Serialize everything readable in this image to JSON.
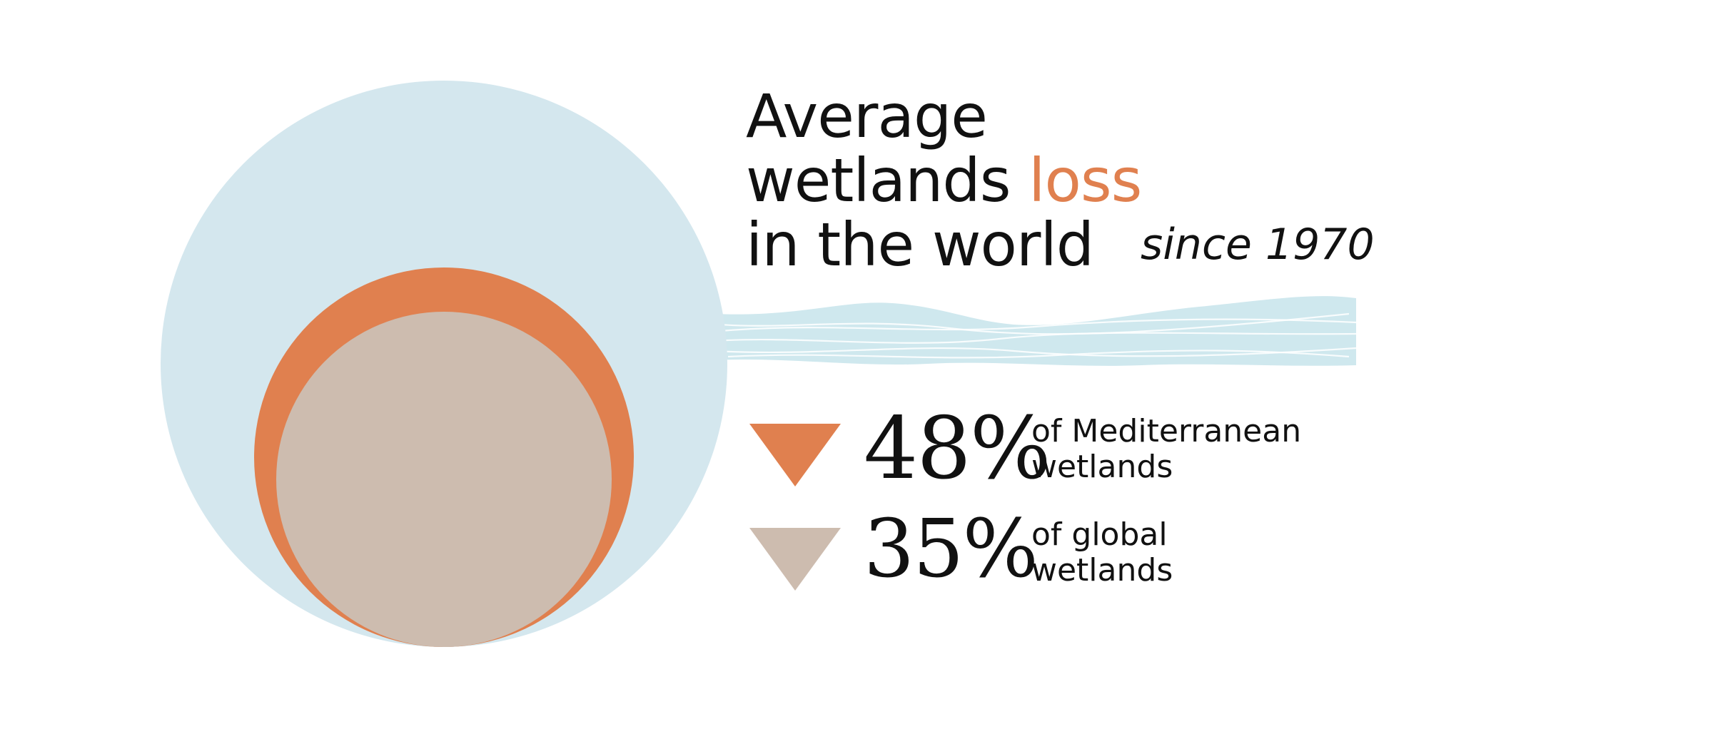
{
  "colors": {
    "world_circle": "#d4e7ee",
    "mediterranean": "#e0804f",
    "global": "#cdbcaf",
    "water": "#cfe8ee",
    "text": "#111111"
  },
  "title": {
    "line1": "Average",
    "line2_before": "wetlands ",
    "line2_accent": "loss",
    "line3": "in the world",
    "subtitle": "since 1970"
  },
  "stats": [
    {
      "value_text": "48%",
      "desc_line1": "of Mediterranean",
      "desc_line2": "wetlands",
      "icon": "down-triangle-icon",
      "color": "#e0804f"
    },
    {
      "value_text": "35%",
      "desc_line1": "of global",
      "desc_line2": "wetlands",
      "icon": "down-triangle-icon",
      "color": "#cdbcaf"
    }
  ],
  "chart_data": {
    "type": "area",
    "title": "Average wetlands loss in the world since 1970",
    "series": [
      {
        "name": "Mediterranean wetlands",
        "loss_percent": 48,
        "color": "#e0804f"
      },
      {
        "name": "global wetlands",
        "loss_percent": 35,
        "color": "#cdbcaf"
      }
    ],
    "reference": {
      "value": 100,
      "color": "#d4e7ee"
    }
  }
}
